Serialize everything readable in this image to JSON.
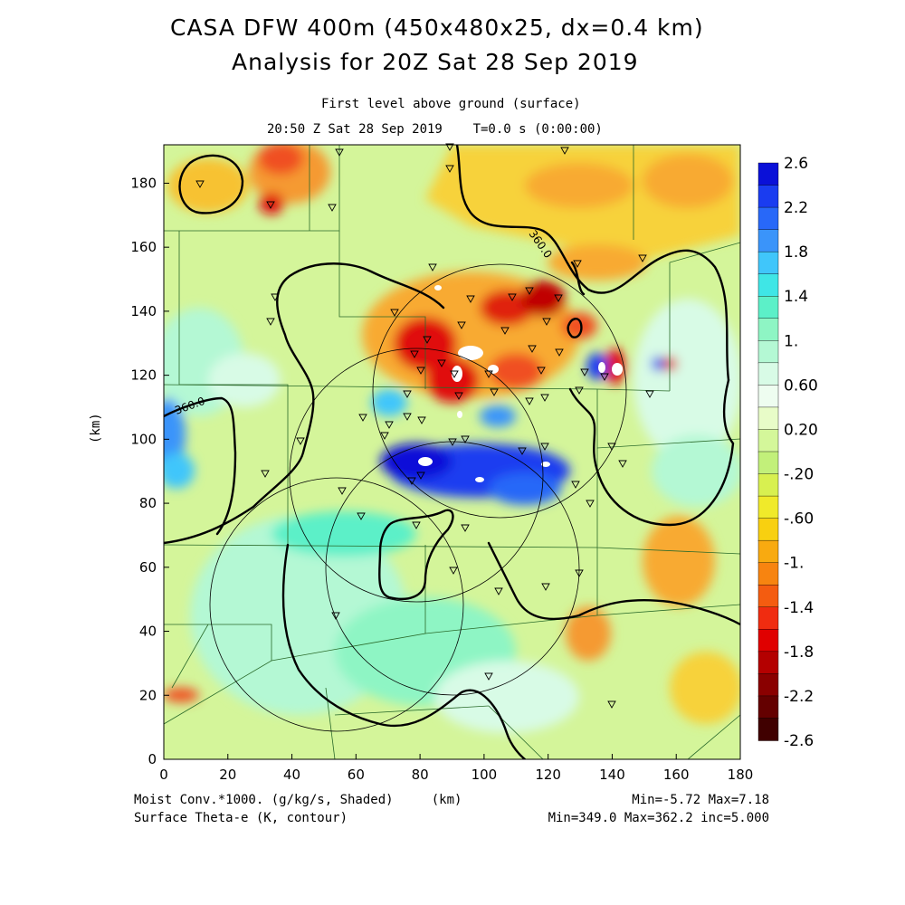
{
  "header": {
    "title_line1": "CASA DFW 400m (450x480x25, dx=0.4 km)",
    "title_line2": "Analysis for 20Z Sat 28 Sep 2019",
    "level": "First level above ground (surface)",
    "time": "20:50 Z Sat 28 Sep 2019    T=0.0 s (0:00:00)"
  },
  "axes": {
    "ylabel": "(km)",
    "xlabel": "(km)",
    "x_ticks": [
      "0",
      "20",
      "40",
      "60",
      "80",
      "100",
      "120",
      "140",
      "160",
      "180"
    ],
    "y_ticks": [
      "0",
      "20",
      "40",
      "60",
      "80",
      "100",
      "120",
      "140",
      "160",
      "180"
    ],
    "xlim": [
      0,
      180
    ],
    "ylim": [
      0,
      192
    ]
  },
  "colorbar": {
    "labels": [
      "2.6",
      "2.2",
      "1.8",
      "1.4",
      "1.",
      "0.60",
      "0.20",
      "-.20",
      "-.60",
      "-1.",
      "-1.4",
      "-1.8",
      "-2.2",
      "-2.6"
    ],
    "colors": [
      "#0a10d8",
      "#1a3cf0",
      "#2868f8",
      "#3a94fa",
      "#40c6fb",
      "#3fe6e6",
      "#5cf0c8",
      "#8ef5c4",
      "#b4f8d4",
      "#d8fbe6",
      "#eefdf0",
      "#e8fcc8",
      "#d4f79a",
      "#c2f07a",
      "#d8f050",
      "#f0ea2a",
      "#f8d010",
      "#f8aa10",
      "#f78410",
      "#f45c10",
      "#f02c10",
      "#e00000",
      "#b40000",
      "#8a0000",
      "#640000",
      "#400000"
    ]
  },
  "footer": {
    "left_line1": "Moist Conv.*1000. (g/kg/s, Shaded)     (km)",
    "left_line2": "Surface Theta-e (K, contour)",
    "right_line1": "Min=-5.72 Max=7.18",
    "right_line2": "Min=349.0 Max=362.2 inc=5.000"
  },
  "contour_labels": [
    "360.0",
    "360.0"
  ],
  "map": {
    "radar_rings": 4,
    "station_marker": "triangle-down",
    "station_count": 58
  }
}
